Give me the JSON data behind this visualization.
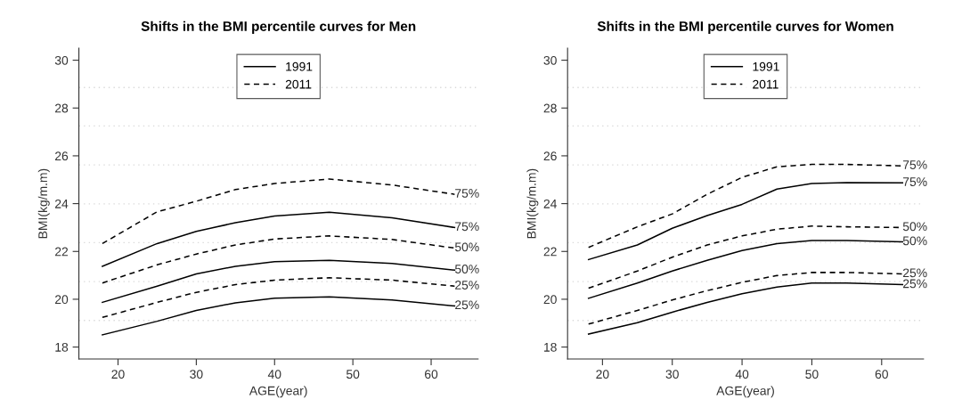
{
  "chart_data": [
    {
      "type": "line",
      "title": "Shifts in the BMI percentile curves for Men",
      "xlabel": "AGE(year)",
      "ylabel": "BMI(kg/m.m)",
      "xlim": [
        15,
        66
      ],
      "ylim": [
        17.5,
        30.5
      ],
      "xticks": [
        20,
        30,
        40,
        50,
        60
      ],
      "yticks": [
        18,
        20,
        22,
        24,
        26,
        28,
        30
      ],
      "grid": false,
      "legend": "top",
      "marker": "none",
      "x": [
        18,
        25,
        30,
        35,
        40,
        47,
        55,
        63
      ],
      "series": [
        {
          "name": "1991",
          "color": "#000000",
          "line_style": "solid",
          "values": [
            21.38,
            22.33,
            22.84,
            23.2,
            23.48,
            23.64,
            23.41,
            23.0
          ]
        },
        {
          "name": "2011",
          "color": "#000000",
          "line_style": "dashed",
          "values": [
            22.33,
            23.66,
            24.1,
            24.59,
            24.84,
            25.03,
            24.78,
            24.39
          ]
        },
        {
          "color": "#000000",
          "line_style": "solid",
          "values": [
            19.87,
            20.55,
            21.06,
            21.38,
            21.57,
            21.63,
            21.5,
            21.22
          ]
        },
        {
          "color": "#000000",
          "line_style": "dashed",
          "values": [
            20.68,
            21.44,
            21.89,
            22.27,
            22.52,
            22.65,
            22.5,
            22.14
          ]
        },
        {
          "color": "#000000",
          "line_style": "solid",
          "values": [
            18.51,
            19.08,
            19.53,
            19.85,
            20.04,
            20.1,
            19.97,
            19.72
          ]
        },
        {
          "color": "#000000",
          "line_style": "dashed",
          "values": [
            19.24,
            19.87,
            20.29,
            20.61,
            20.8,
            20.9,
            20.8,
            20.55
          ]
        }
      ],
      "ref_lines": [
        {
          "axis": "y",
          "value": 28.86,
          "color": "#d9d9d9",
          "line_style": "dotted"
        },
        {
          "axis": "y",
          "value": 27.25,
          "color": "#d9d9d9",
          "line_style": "dotted"
        },
        {
          "axis": "y",
          "value": 25.62,
          "color": "#d9d9d9",
          "line_style": "dotted"
        },
        {
          "axis": "y",
          "value": 23.99,
          "color": "#d9d9d9",
          "line_style": "dotted"
        },
        {
          "axis": "y",
          "value": 22.37,
          "color": "#d9d9d9",
          "line_style": "dotted"
        },
        {
          "axis": "y",
          "value": 20.74,
          "color": "#d9d9d9",
          "line_style": "dotted"
        },
        {
          "axis": "y",
          "value": 19.11,
          "color": "#d9d9d9",
          "line_style": "dotted"
        }
      ],
      "annotations": [
        "75%",
        "75%",
        "50%",
        "50%",
        "25%",
        "25%"
      ]
    },
    {
      "type": "line",
      "title": "Shifts in the BMI percentile curves for Women",
      "xlabel": "AGE(year)",
      "ylabel": "BMI(kg/m.m)",
      "xlim": [
        15,
        66
      ],
      "ylim": [
        17.5,
        30.5
      ],
      "xticks": [
        20,
        30,
        40,
        50,
        60
      ],
      "yticks": [
        18,
        20,
        22,
        24,
        26,
        28,
        30
      ],
      "grid": false,
      "legend": "top",
      "marker": "none",
      "x": [
        18,
        25,
        30,
        35,
        40,
        45,
        50,
        55,
        63
      ],
      "series": [
        {
          "name": "1991",
          "color": "#000000",
          "line_style": "solid",
          "values": [
            21.66,
            22.27,
            22.97,
            23.5,
            23.97,
            24.61,
            24.84,
            24.88,
            24.87
          ]
        },
        {
          "name": "2011",
          "color": "#000000",
          "line_style": "dashed",
          "values": [
            22.17,
            23.03,
            23.57,
            24.39,
            25.1,
            25.54,
            25.64,
            25.64,
            25.58
          ]
        },
        {
          "color": "#000000",
          "line_style": "solid",
          "values": [
            20.04,
            20.68,
            21.18,
            21.63,
            22.04,
            22.33,
            22.46,
            22.46,
            22.4
          ]
        },
        {
          "color": "#000000",
          "line_style": "dashed",
          "values": [
            20.46,
            21.18,
            21.76,
            22.27,
            22.65,
            22.93,
            23.06,
            23.03,
            23.0
          ]
        },
        {
          "color": "#000000",
          "line_style": "solid",
          "values": [
            18.54,
            19.02,
            19.46,
            19.87,
            20.23,
            20.51,
            20.68,
            20.68,
            20.61
          ]
        },
        {
          "color": "#000000",
          "line_style": "dashed",
          "values": [
            18.96,
            19.53,
            19.97,
            20.36,
            20.71,
            20.99,
            21.12,
            21.12,
            21.06
          ]
        }
      ],
      "ref_lines": [
        {
          "axis": "y",
          "value": 28.86,
          "color": "#d9d9d9",
          "line_style": "dotted"
        },
        {
          "axis": "y",
          "value": 27.25,
          "color": "#d9d9d9",
          "line_style": "dotted"
        },
        {
          "axis": "y",
          "value": 25.62,
          "color": "#d9d9d9",
          "line_style": "dotted"
        },
        {
          "axis": "y",
          "value": 23.99,
          "color": "#d9d9d9",
          "line_style": "dotted"
        },
        {
          "axis": "y",
          "value": 22.37,
          "color": "#d9d9d9",
          "line_style": "dotted"
        },
        {
          "axis": "y",
          "value": 20.74,
          "color": "#d9d9d9",
          "line_style": "dotted"
        },
        {
          "axis": "y",
          "value": 19.11,
          "color": "#d9d9d9",
          "line_style": "dotted"
        }
      ],
      "annotations": [
        "75%",
        "75%",
        "50%",
        "50%",
        "25%",
        "25%"
      ]
    }
  ]
}
